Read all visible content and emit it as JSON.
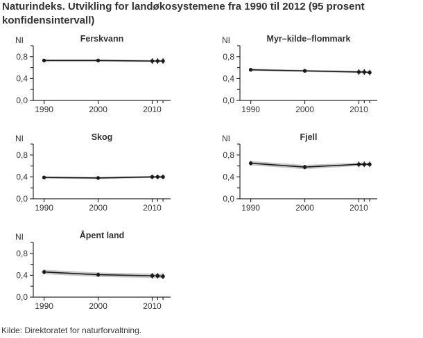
{
  "page": {
    "title": "Naturindeks. Utvikling for landøkosystemene fra 1990 til 2012 (95 prosent konfidensintervall)",
    "source": "Kilde: Direktoratet for naturforvaltning."
  },
  "colors": {
    "text": "#333333",
    "axis": "#2b2b2b",
    "line": "#1a1a1a",
    "band": "#c8c8c8"
  },
  "chart_data": [
    {
      "type": "line",
      "title": "Ferskvann",
      "ylabel": "NI",
      "x": [
        1990,
        2000,
        2010,
        2011,
        2012
      ],
      "y": [
        0.73,
        0.73,
        0.72,
        0.72,
        0.72
      ],
      "ci_lower": [
        0.71,
        0.71,
        0.7,
        0.7,
        0.7
      ],
      "ci_upper": [
        0.75,
        0.75,
        0.74,
        0.74,
        0.74
      ],
      "point_err_half": [
        0.025,
        0.025,
        0.05,
        0.05,
        0.05
      ],
      "ylim": [
        0,
        1
      ],
      "xlim": [
        1988,
        2013.4
      ],
      "yticks_major": [
        {
          "v": 0.0,
          "label": "0,0"
        },
        {
          "v": 0.4,
          "label": "0,4"
        },
        {
          "v": 0.8,
          "label": "0,8"
        }
      ],
      "yticks_minor": [
        0.2,
        0.6,
        1.0
      ],
      "xticks_major": [
        {
          "v": 1990,
          "label": "1990"
        },
        {
          "v": 2000,
          "label": "2000"
        },
        {
          "v": 2010,
          "label": "2010"
        }
      ],
      "xticks_minor": [
        2011,
        2012
      ]
    },
    {
      "type": "line",
      "title": "Myr–kilde–flommark",
      "ylabel": "NI",
      "x": [
        1990,
        2000,
        2010,
        2011,
        2012
      ],
      "y": [
        0.56,
        0.54,
        0.52,
        0.52,
        0.51
      ],
      "ci_lower": [
        0.54,
        0.52,
        0.5,
        0.5,
        0.49
      ],
      "ci_upper": [
        0.58,
        0.56,
        0.54,
        0.54,
        0.53
      ],
      "point_err_half": [
        0.025,
        0.025,
        0.05,
        0.05,
        0.05
      ],
      "ylim": [
        0,
        1
      ],
      "xlim": [
        1988,
        2013.4
      ],
      "yticks_major": [
        {
          "v": 0.0,
          "label": "0,0"
        },
        {
          "v": 0.4,
          "label": "0,4"
        },
        {
          "v": 0.8,
          "label": "0,8"
        }
      ],
      "yticks_minor": [
        0.2,
        0.6,
        1.0
      ],
      "xticks_major": [
        {
          "v": 1990,
          "label": "1990"
        },
        {
          "v": 2000,
          "label": "2000"
        },
        {
          "v": 2010,
          "label": "2010"
        }
      ],
      "xticks_minor": [
        2011,
        2012
      ]
    },
    {
      "type": "line",
      "title": "Skog",
      "ylabel": "NI",
      "x": [
        1990,
        2000,
        2010,
        2011,
        2012
      ],
      "y": [
        0.39,
        0.38,
        0.4,
        0.4,
        0.4
      ],
      "ci_lower": [
        0.37,
        0.36,
        0.38,
        0.38,
        0.38
      ],
      "ci_upper": [
        0.41,
        0.4,
        0.42,
        0.42,
        0.42
      ],
      "point_err_half": [
        0.022,
        0.022,
        0.04,
        0.04,
        0.04
      ],
      "ylim": [
        0,
        1
      ],
      "xlim": [
        1988,
        2013.4
      ],
      "yticks_major": [
        {
          "v": 0.0,
          "label": "0,0"
        },
        {
          "v": 0.4,
          "label": "0,4"
        },
        {
          "v": 0.8,
          "label": "0,8"
        }
      ],
      "yticks_minor": [
        0.2,
        0.6,
        1.0
      ],
      "xticks_major": [
        {
          "v": 1990,
          "label": "1990"
        },
        {
          "v": 2000,
          "label": "2000"
        },
        {
          "v": 2010,
          "label": "2010"
        }
      ],
      "xticks_minor": [
        2011,
        2012
      ]
    },
    {
      "type": "line",
      "title": "Fjell",
      "ylabel": "NI",
      "x": [
        1990,
        2000,
        2010,
        2011,
        2012
      ],
      "y": [
        0.65,
        0.58,
        0.63,
        0.63,
        0.63
      ],
      "ci_lower": [
        0.61,
        0.54,
        0.6,
        0.6,
        0.6
      ],
      "ci_upper": [
        0.69,
        0.62,
        0.66,
        0.66,
        0.66
      ],
      "point_err_half": [
        0.04,
        0.04,
        0.05,
        0.05,
        0.05
      ],
      "ylim": [
        0,
        1
      ],
      "xlim": [
        1988,
        2013.4
      ],
      "yticks_major": [
        {
          "v": 0.0,
          "label": "0,0"
        },
        {
          "v": 0.4,
          "label": "0,4"
        },
        {
          "v": 0.8,
          "label": "0,8"
        }
      ],
      "yticks_minor": [
        0.2,
        0.6,
        1.0
      ],
      "xticks_major": [
        {
          "v": 1990,
          "label": "1990"
        },
        {
          "v": 2000,
          "label": "2000"
        },
        {
          "v": 2010,
          "label": "2010"
        }
      ],
      "xticks_minor": [
        2011,
        2012
      ]
    },
    {
      "type": "line",
      "title": "Åpent land",
      "ylabel": "NI",
      "x": [
        1990,
        2000,
        2010,
        2011,
        2012
      ],
      "y": [
        0.46,
        0.41,
        0.39,
        0.39,
        0.38
      ],
      "ci_lower": [
        0.42,
        0.37,
        0.35,
        0.35,
        0.34
      ],
      "ci_upper": [
        0.5,
        0.45,
        0.43,
        0.43,
        0.42
      ],
      "point_err_half": [
        0.04,
        0.04,
        0.05,
        0.05,
        0.05
      ],
      "ylim": [
        0,
        1
      ],
      "xlim": [
        1988,
        2013.4
      ],
      "yticks_major": [
        {
          "v": 0.0,
          "label": "0,0"
        },
        {
          "v": 0.4,
          "label": "0,4"
        },
        {
          "v": 0.8,
          "label": "0,8"
        }
      ],
      "yticks_minor": [
        0.2,
        0.6,
        1.0
      ],
      "xticks_major": [
        {
          "v": 1990,
          "label": "1990"
        },
        {
          "v": 2000,
          "label": "2000"
        },
        {
          "v": 2010,
          "label": "2010"
        }
      ],
      "xticks_minor": [
        2011,
        2012
      ]
    }
  ]
}
